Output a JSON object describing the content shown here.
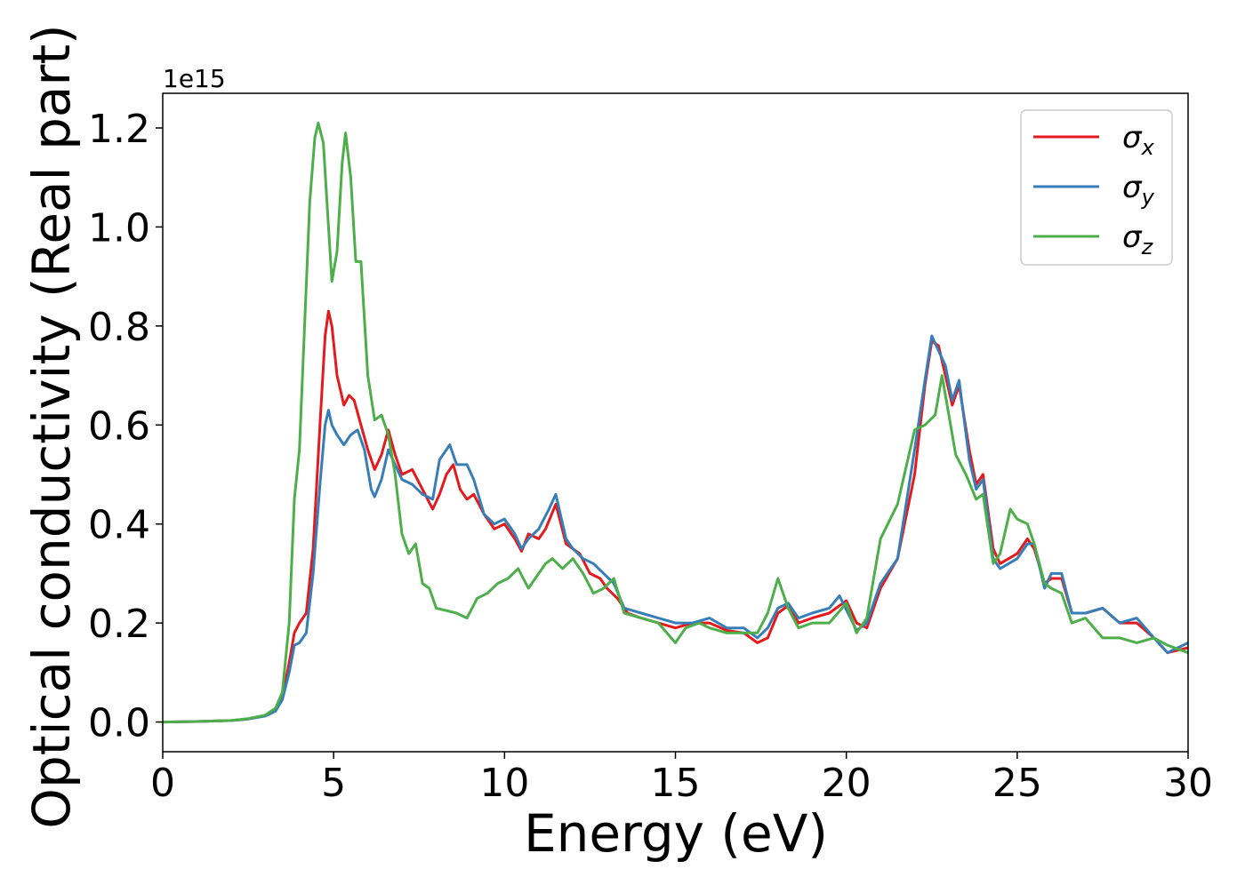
{
  "chart_data": {
    "type": "line",
    "title": "",
    "xlabel": "Energy (eV)",
    "ylabel": "Optical conductivity (Real part)",
    "y_offset_label": "1e15",
    "xlim": [
      0,
      30
    ],
    "ylim": [
      -0.06,
      1.27
    ],
    "x_ticks": [
      0,
      5,
      10,
      15,
      20,
      25,
      30
    ],
    "x_tick_labels": [
      "0",
      "5",
      "10",
      "15",
      "20",
      "25",
      "30"
    ],
    "y_ticks": [
      0.0,
      0.2,
      0.4,
      0.6,
      0.8,
      1.0,
      1.2
    ],
    "y_tick_labels": [
      "0.0",
      "0.2",
      "0.4",
      "0.6",
      "0.8",
      "1.0",
      "1.2"
    ],
    "grid": false,
    "legend_position": "top-right",
    "series": [
      {
        "name": "σx",
        "name_base": "σ",
        "name_sub": "x",
        "color": "#e41a1c",
        "points": [
          [
            0,
            0
          ],
          [
            1,
            0.001
          ],
          [
            2,
            0.003
          ],
          [
            2.5,
            0.006
          ],
          [
            3,
            0.013
          ],
          [
            3.3,
            0.025
          ],
          [
            3.5,
            0.05
          ],
          [
            3.7,
            0.12
          ],
          [
            3.85,
            0.18
          ],
          [
            4.0,
            0.2
          ],
          [
            4.2,
            0.22
          ],
          [
            4.4,
            0.35
          ],
          [
            4.6,
            0.6
          ],
          [
            4.75,
            0.78
          ],
          [
            4.85,
            0.83
          ],
          [
            4.95,
            0.8
          ],
          [
            5.1,
            0.7
          ],
          [
            5.2,
            0.67
          ],
          [
            5.3,
            0.64
          ],
          [
            5.45,
            0.66
          ],
          [
            5.6,
            0.65
          ],
          [
            5.8,
            0.6
          ],
          [
            6.0,
            0.55
          ],
          [
            6.2,
            0.51
          ],
          [
            6.4,
            0.54
          ],
          [
            6.6,
            0.59
          ],
          [
            6.8,
            0.54
          ],
          [
            7.0,
            0.5
          ],
          [
            7.3,
            0.51
          ],
          [
            7.6,
            0.47
          ],
          [
            7.9,
            0.43
          ],
          [
            8.1,
            0.46
          ],
          [
            8.3,
            0.5
          ],
          [
            8.5,
            0.52
          ],
          [
            8.7,
            0.47
          ],
          [
            8.9,
            0.45
          ],
          [
            9.1,
            0.46
          ],
          [
            9.4,
            0.42
          ],
          [
            9.7,
            0.39
          ],
          [
            10.0,
            0.4
          ],
          [
            10.3,
            0.37
          ],
          [
            10.5,
            0.345
          ],
          [
            10.7,
            0.38
          ],
          [
            11.0,
            0.37
          ],
          [
            11.2,
            0.39
          ],
          [
            11.5,
            0.44
          ],
          [
            11.8,
            0.36
          ],
          [
            12.0,
            0.35
          ],
          [
            12.2,
            0.34
          ],
          [
            12.5,
            0.3
          ],
          [
            12.8,
            0.29
          ],
          [
            13.0,
            0.27
          ],
          [
            13.3,
            0.25
          ],
          [
            13.6,
            0.22
          ],
          [
            14.0,
            0.21
          ],
          [
            14.5,
            0.2
          ],
          [
            15.0,
            0.19
          ],
          [
            15.5,
            0.2
          ],
          [
            16.0,
            0.2
          ],
          [
            16.5,
            0.185
          ],
          [
            17.0,
            0.18
          ],
          [
            17.4,
            0.16
          ],
          [
            17.7,
            0.17
          ],
          [
            18.0,
            0.22
          ],
          [
            18.3,
            0.235
          ],
          [
            18.6,
            0.2
          ],
          [
            19.0,
            0.21
          ],
          [
            19.5,
            0.22
          ],
          [
            20.0,
            0.245
          ],
          [
            20.3,
            0.2
          ],
          [
            20.6,
            0.19
          ],
          [
            21.0,
            0.27
          ],
          [
            21.5,
            0.33
          ],
          [
            22.0,
            0.5
          ],
          [
            22.3,
            0.68
          ],
          [
            22.5,
            0.77
          ],
          [
            22.7,
            0.76
          ],
          [
            22.9,
            0.7
          ],
          [
            23.1,
            0.64
          ],
          [
            23.3,
            0.68
          ],
          [
            23.6,
            0.55
          ],
          [
            23.8,
            0.48
          ],
          [
            24.0,
            0.5
          ],
          [
            24.3,
            0.35
          ],
          [
            24.5,
            0.32
          ],
          [
            25.0,
            0.34
          ],
          [
            25.3,
            0.37
          ],
          [
            25.5,
            0.35
          ],
          [
            25.8,
            0.28
          ],
          [
            26.0,
            0.29
          ],
          [
            26.3,
            0.29
          ],
          [
            26.6,
            0.22
          ],
          [
            27.0,
            0.22
          ],
          [
            27.5,
            0.23
          ],
          [
            28.0,
            0.2
          ],
          [
            28.5,
            0.2
          ],
          [
            29.0,
            0.17
          ],
          [
            29.4,
            0.14
          ],
          [
            30.0,
            0.15
          ]
        ]
      },
      {
        "name": "σy",
        "name_base": "σ",
        "name_sub": "y",
        "color": "#377eb8",
        "points": [
          [
            0,
            0
          ],
          [
            1,
            0.001
          ],
          [
            2,
            0.003
          ],
          [
            2.5,
            0.006
          ],
          [
            3,
            0.012
          ],
          [
            3.3,
            0.022
          ],
          [
            3.5,
            0.045
          ],
          [
            3.7,
            0.1
          ],
          [
            3.85,
            0.155
          ],
          [
            4.0,
            0.16
          ],
          [
            4.2,
            0.18
          ],
          [
            4.4,
            0.3
          ],
          [
            4.6,
            0.48
          ],
          [
            4.75,
            0.6
          ],
          [
            4.85,
            0.63
          ],
          [
            4.95,
            0.6
          ],
          [
            5.1,
            0.58
          ],
          [
            5.3,
            0.56
          ],
          [
            5.5,
            0.58
          ],
          [
            5.7,
            0.59
          ],
          [
            5.9,
            0.55
          ],
          [
            6.1,
            0.47
          ],
          [
            6.2,
            0.455
          ],
          [
            6.4,
            0.49
          ],
          [
            6.6,
            0.55
          ],
          [
            6.8,
            0.52
          ],
          [
            7.0,
            0.49
          ],
          [
            7.3,
            0.48
          ],
          [
            7.6,
            0.46
          ],
          [
            7.9,
            0.45
          ],
          [
            8.1,
            0.53
          ],
          [
            8.4,
            0.56
          ],
          [
            8.6,
            0.52
          ],
          [
            8.9,
            0.52
          ],
          [
            9.1,
            0.49
          ],
          [
            9.4,
            0.42
          ],
          [
            9.7,
            0.4
          ],
          [
            10.0,
            0.41
          ],
          [
            10.3,
            0.38
          ],
          [
            10.5,
            0.35
          ],
          [
            10.7,
            0.37
          ],
          [
            11.0,
            0.39
          ],
          [
            11.3,
            0.43
          ],
          [
            11.5,
            0.46
          ],
          [
            11.8,
            0.37
          ],
          [
            12.0,
            0.35
          ],
          [
            12.3,
            0.33
          ],
          [
            12.6,
            0.32
          ],
          [
            12.9,
            0.3
          ],
          [
            13.2,
            0.28
          ],
          [
            13.5,
            0.23
          ],
          [
            14.0,
            0.22
          ],
          [
            14.5,
            0.21
          ],
          [
            15.0,
            0.2
          ],
          [
            15.5,
            0.2
          ],
          [
            16.0,
            0.21
          ],
          [
            16.5,
            0.19
          ],
          [
            17.0,
            0.19
          ],
          [
            17.4,
            0.17
          ],
          [
            17.7,
            0.19
          ],
          [
            18.0,
            0.23
          ],
          [
            18.3,
            0.24
          ],
          [
            18.6,
            0.21
          ],
          [
            19.0,
            0.22
          ],
          [
            19.5,
            0.23
          ],
          [
            19.8,
            0.255
          ],
          [
            20.3,
            0.185
          ],
          [
            20.6,
            0.2
          ],
          [
            21.0,
            0.28
          ],
          [
            21.5,
            0.33
          ],
          [
            22.0,
            0.55
          ],
          [
            22.3,
            0.69
          ],
          [
            22.5,
            0.78
          ],
          [
            22.7,
            0.75
          ],
          [
            22.9,
            0.72
          ],
          [
            23.1,
            0.65
          ],
          [
            23.3,
            0.69
          ],
          [
            23.6,
            0.53
          ],
          [
            23.8,
            0.47
          ],
          [
            24.0,
            0.49
          ],
          [
            24.3,
            0.33
          ],
          [
            24.5,
            0.31
          ],
          [
            25.0,
            0.33
          ],
          [
            25.3,
            0.36
          ],
          [
            25.5,
            0.36
          ],
          [
            25.8,
            0.27
          ],
          [
            26.0,
            0.3
          ],
          [
            26.3,
            0.3
          ],
          [
            26.6,
            0.22
          ],
          [
            27.0,
            0.22
          ],
          [
            27.5,
            0.23
          ],
          [
            28.0,
            0.2
          ],
          [
            28.5,
            0.21
          ],
          [
            29.0,
            0.17
          ],
          [
            29.4,
            0.14
          ],
          [
            30.0,
            0.16
          ]
        ]
      },
      {
        "name": "σz",
        "name_base": "σ",
        "name_sub": "z",
        "color": "#4daf4a",
        "points": [
          [
            0,
            0
          ],
          [
            1,
            0.001
          ],
          [
            2,
            0.003
          ],
          [
            2.5,
            0.007
          ],
          [
            3,
            0.014
          ],
          [
            3.3,
            0.028
          ],
          [
            3.5,
            0.06
          ],
          [
            3.7,
            0.2
          ],
          [
            3.85,
            0.45
          ],
          [
            4.0,
            0.55
          ],
          [
            4.15,
            0.8
          ],
          [
            4.3,
            1.05
          ],
          [
            4.45,
            1.18
          ],
          [
            4.55,
            1.21
          ],
          [
            4.7,
            1.17
          ],
          [
            4.85,
            1.0
          ],
          [
            4.95,
            0.89
          ],
          [
            5.1,
            0.95
          ],
          [
            5.25,
            1.13
          ],
          [
            5.35,
            1.19
          ],
          [
            5.5,
            1.1
          ],
          [
            5.65,
            0.93
          ],
          [
            5.8,
            0.93
          ],
          [
            6.0,
            0.7
          ],
          [
            6.2,
            0.61
          ],
          [
            6.4,
            0.62
          ],
          [
            6.6,
            0.58
          ],
          [
            6.8,
            0.5
          ],
          [
            7.0,
            0.38
          ],
          [
            7.2,
            0.34
          ],
          [
            7.4,
            0.36
          ],
          [
            7.6,
            0.28
          ],
          [
            7.8,
            0.27
          ],
          [
            8.0,
            0.23
          ],
          [
            8.3,
            0.225
          ],
          [
            8.6,
            0.22
          ],
          [
            8.9,
            0.21
          ],
          [
            9.2,
            0.25
          ],
          [
            9.5,
            0.26
          ],
          [
            9.8,
            0.28
          ],
          [
            10.1,
            0.29
          ],
          [
            10.4,
            0.31
          ],
          [
            10.7,
            0.27
          ],
          [
            11.0,
            0.3
          ],
          [
            11.2,
            0.32
          ],
          [
            11.4,
            0.33
          ],
          [
            11.7,
            0.31
          ],
          [
            12.0,
            0.33
          ],
          [
            12.3,
            0.3
          ],
          [
            12.6,
            0.26
          ],
          [
            12.9,
            0.27
          ],
          [
            13.2,
            0.29
          ],
          [
            13.5,
            0.22
          ],
          [
            14.0,
            0.21
          ],
          [
            14.5,
            0.2
          ],
          [
            15.0,
            0.16
          ],
          [
            15.3,
            0.19
          ],
          [
            15.7,
            0.2
          ],
          [
            16.0,
            0.19
          ],
          [
            16.5,
            0.18
          ],
          [
            17.0,
            0.18
          ],
          [
            17.4,
            0.18
          ],
          [
            17.7,
            0.22
          ],
          [
            18.0,
            0.29
          ],
          [
            18.3,
            0.23
          ],
          [
            18.6,
            0.19
          ],
          [
            19.0,
            0.2
          ],
          [
            19.5,
            0.2
          ],
          [
            20.0,
            0.24
          ],
          [
            20.3,
            0.18
          ],
          [
            20.6,
            0.21
          ],
          [
            21.0,
            0.37
          ],
          [
            21.5,
            0.44
          ],
          [
            22.0,
            0.59
          ],
          [
            22.3,
            0.6
          ],
          [
            22.6,
            0.62
          ],
          [
            22.8,
            0.7
          ],
          [
            23.0,
            0.62
          ],
          [
            23.2,
            0.54
          ],
          [
            23.5,
            0.5
          ],
          [
            23.8,
            0.45
          ],
          [
            24.0,
            0.46
          ],
          [
            24.3,
            0.32
          ],
          [
            24.5,
            0.34
          ],
          [
            24.8,
            0.43
          ],
          [
            25.0,
            0.41
          ],
          [
            25.3,
            0.4
          ],
          [
            25.5,
            0.36
          ],
          [
            25.8,
            0.28
          ],
          [
            26.0,
            0.27
          ],
          [
            26.3,
            0.26
          ],
          [
            26.6,
            0.2
          ],
          [
            27.0,
            0.21
          ],
          [
            27.5,
            0.17
          ],
          [
            28.0,
            0.17
          ],
          [
            28.5,
            0.16
          ],
          [
            29.0,
            0.17
          ],
          [
            29.4,
            0.155
          ],
          [
            30.0,
            0.14
          ]
        ]
      }
    ]
  }
}
